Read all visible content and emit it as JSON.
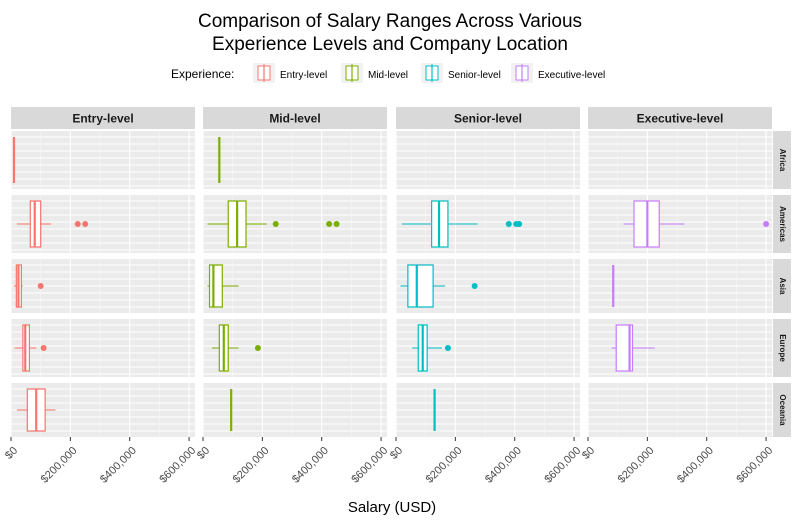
{
  "chart_data": {
    "type": "boxplot",
    "title": "Comparison of Salary Ranges Across Various\nExperience Levels and Company Location",
    "title_lines": [
      "Comparison of Salary Ranges Across Various",
      "Experience Levels and Company Location"
    ],
    "xlabel": "Salary (USD)",
    "ylabel": "",
    "xlim": [
      0,
      620000
    ],
    "x_ticks": [
      0,
      200000,
      400000,
      600000
    ],
    "x_tick_labels": [
      "$0",
      "$200,000",
      "$400,000",
      "$600,000"
    ],
    "legend": {
      "title": "Experience:",
      "position": "top",
      "entries": [
        "Entry-level",
        "Mid-level",
        "Senior-level",
        "Executive-level"
      ]
    },
    "colors": {
      "Entry-level": "#F8766D",
      "Mid-level": "#7CAE00",
      "Senior-level": "#00BFC4",
      "Executive-level": "#C77CFF"
    },
    "facet_columns": [
      "Entry-level",
      "Mid-level",
      "Senior-level",
      "Executive-level"
    ],
    "facet_rows": [
      "Africa",
      "Americas",
      "Asia",
      "Europe",
      "Oceania"
    ],
    "grid": true,
    "panels": [
      {
        "experience": "Entry-level",
        "location": "Africa",
        "stats": {
          "min": 10000,
          "q1": 10000,
          "median": 10000,
          "q3": 10000,
          "max": 10000
        },
        "outliers": []
      },
      {
        "experience": "Entry-level",
        "location": "Americas",
        "stats": {
          "min": 20000,
          "q1": 65000,
          "median": 80000,
          "q3": 100000,
          "max": 135000
        },
        "outliers": [
          225000,
          250000
        ]
      },
      {
        "experience": "Entry-level",
        "location": "Asia",
        "stats": {
          "min": 10000,
          "q1": 18000,
          "median": 25000,
          "q3": 35000,
          "max": 40000
        },
        "outliers": [
          100000
        ]
      },
      {
        "experience": "Entry-level",
        "location": "Europe",
        "stats": {
          "min": 12000,
          "q1": 40000,
          "median": 48000,
          "q3": 62000,
          "max": 85000
        },
        "outliers": [
          110000
        ]
      },
      {
        "experience": "Entry-level",
        "location": "Oceania",
        "stats": {
          "min": 20000,
          "q1": 55000,
          "median": 85000,
          "q3": 115000,
          "max": 150000
        },
        "outliers": []
      },
      {
        "experience": "Mid-level",
        "location": "Africa",
        "stats": {
          "min": 55000,
          "q1": 55000,
          "median": 55000,
          "q3": 55000,
          "max": 55000
        },
        "outliers": []
      },
      {
        "experience": "Mid-level",
        "location": "Americas",
        "stats": {
          "min": 15000,
          "q1": 85000,
          "median": 115000,
          "q3": 145000,
          "max": 215000
        },
        "outliers": [
          245000,
          425000,
          450000
        ]
      },
      {
        "experience": "Mid-level",
        "location": "Asia",
        "stats": {
          "min": 15000,
          "q1": 22000,
          "median": 35000,
          "q3": 65000,
          "max": 120000
        },
        "outliers": []
      },
      {
        "experience": "Mid-level",
        "location": "Europe",
        "stats": {
          "min": 30000,
          "q1": 55000,
          "median": 70000,
          "q3": 85000,
          "max": 120000
        },
        "outliers": [
          185000
        ]
      },
      {
        "experience": "Mid-level",
        "location": "Oceania",
        "stats": {
          "min": 95000,
          "q1": 95000,
          "median": 95000,
          "q3": 95000,
          "max": 95000
        },
        "outliers": []
      },
      {
        "experience": "Senior-level",
        "location": "Africa",
        "stats": null,
        "outliers": []
      },
      {
        "experience": "Senior-level",
        "location": "Americas",
        "stats": {
          "min": 20000,
          "q1": 120000,
          "median": 145000,
          "q3": 175000,
          "max": 275000
        },
        "outliers": [
          380000,
          405000,
          415000
        ]
      },
      {
        "experience": "Senior-level",
        "location": "Asia",
        "stats": {
          "min": 15000,
          "q1": 40000,
          "median": 70000,
          "q3": 125000,
          "max": 165000
        },
        "outliers": [
          265000
        ]
      },
      {
        "experience": "Senior-level",
        "location": "Europe",
        "stats": {
          "min": 55000,
          "q1": 75000,
          "median": 90000,
          "q3": 105000,
          "max": 155000
        },
        "outliers": [
          175000
        ]
      },
      {
        "experience": "Senior-level",
        "location": "Oceania",
        "stats": {
          "min": 130000,
          "q1": 130000,
          "median": 130000,
          "q3": 130000,
          "max": 130000
        },
        "outliers": []
      },
      {
        "experience": "Executive-level",
        "location": "Africa",
        "stats": null,
        "outliers": []
      },
      {
        "experience": "Executive-level",
        "location": "Americas",
        "stats": {
          "min": 120000,
          "q1": 155000,
          "median": 200000,
          "q3": 240000,
          "max": 325000
        },
        "outliers": [
          600000
        ]
      },
      {
        "experience": "Executive-level",
        "location": "Asia",
        "stats": {
          "min": 85000,
          "q1": 85000,
          "median": 85000,
          "q3": 85000,
          "max": 85000
        },
        "outliers": []
      },
      {
        "experience": "Executive-level",
        "location": "Europe",
        "stats": {
          "min": 80000,
          "q1": 95000,
          "median": 140000,
          "q3": 150000,
          "max": 225000
        },
        "outliers": []
      },
      {
        "experience": "Executive-level",
        "location": "Oceania",
        "stats": null,
        "outliers": []
      }
    ]
  }
}
